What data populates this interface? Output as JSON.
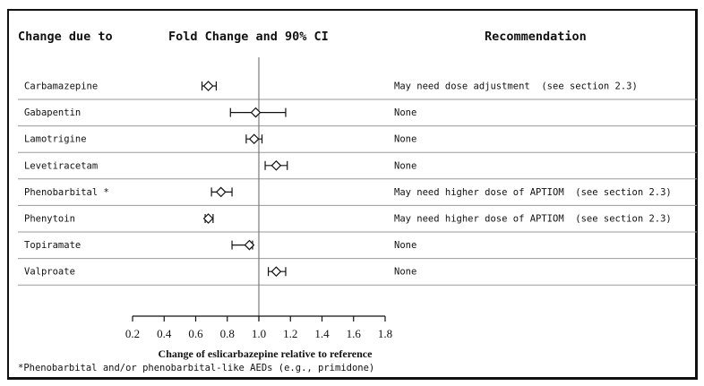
{
  "headers": {
    "change": "Change due to",
    "fold": "Fold Change and 90% CI",
    "recommendation": "Recommendation"
  },
  "footnote": "*Phenobarbital and/or phenobarbital-like AEDs (e.g., primidone)",
  "chart_data": {
    "type": "forest",
    "xlabel": "Change of eslicarbazepine relative to reference",
    "xlim": [
      0.2,
      1.8
    ],
    "xticks": [
      "0.2",
      "0.4",
      "0.6",
      "0.8",
      "1.0",
      "1.2",
      "1.4",
      "1.6",
      "1.8"
    ],
    "reference_line": 1.0,
    "rows": [
      {
        "label": "Carbamazepine",
        "estimate": 0.68,
        "ci_low": 0.64,
        "ci_high": 0.73,
        "recommendation": "May need dose adjustment  (see section 2.3)"
      },
      {
        "label": "Gabapentin",
        "estimate": 0.98,
        "ci_low": 0.82,
        "ci_high": 1.17,
        "recommendation": "None"
      },
      {
        "label": "Lamotrigine",
        "estimate": 0.97,
        "ci_low": 0.92,
        "ci_high": 1.02,
        "recommendation": "None"
      },
      {
        "label": "Levetiracetam",
        "estimate": 1.11,
        "ci_low": 1.04,
        "ci_high": 1.18,
        "recommendation": "None"
      },
      {
        "label": "Phenobarbital *",
        "estimate": 0.76,
        "ci_low": 0.7,
        "ci_high": 0.83,
        "recommendation": "May need higher dose of APTIOM  (see section 2.3)"
      },
      {
        "label": "Phenytoin",
        "estimate": 0.68,
        "ci_low": 0.66,
        "ci_high": 0.71,
        "recommendation": "May need higher dose of APTIOM  (see section 2.3)"
      },
      {
        "label": "Topiramate",
        "estimate": 0.94,
        "ci_low": 0.83,
        "ci_high": 0.96,
        "recommendation": "None"
      },
      {
        "label": "Valproate",
        "estimate": 1.11,
        "ci_low": 1.06,
        "ci_high": 1.17,
        "recommendation": "None"
      }
    ]
  }
}
